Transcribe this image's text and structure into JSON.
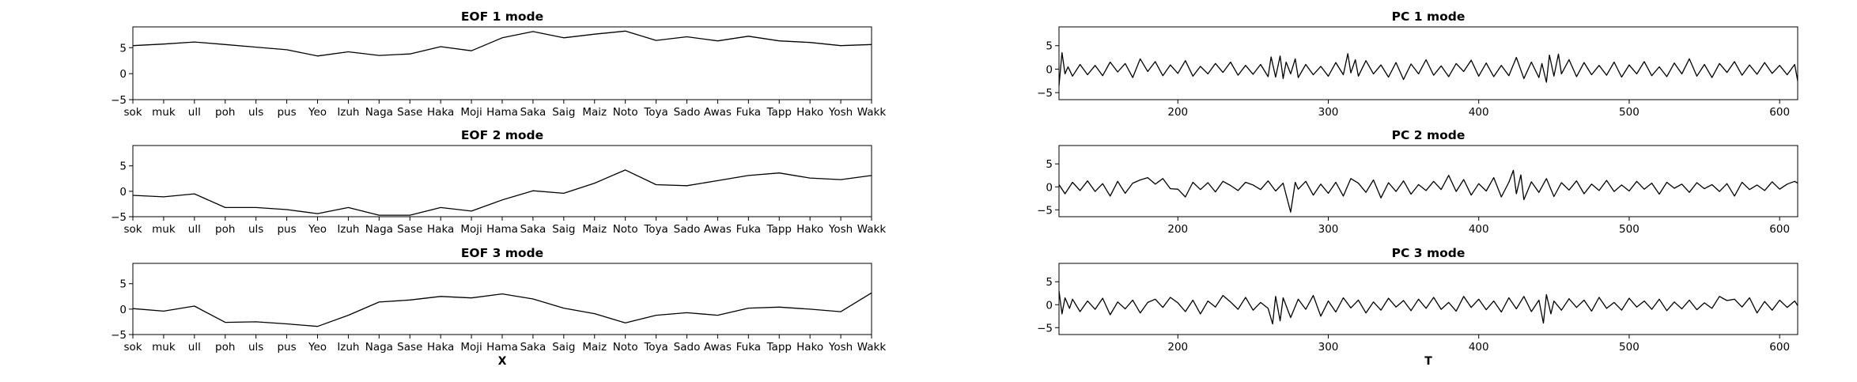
{
  "figure": {
    "colors": {
      "line": "#000000",
      "axes": "#000000",
      "background": "#ffffff"
    }
  },
  "chart_data": [
    {
      "type": "line",
      "title": "EOF 1 mode",
      "xlabel": "",
      "categories": [
        "sok",
        "muk",
        "ull",
        "poh",
        "uls",
        "pus",
        "Yeo",
        "Izuh",
        "Naga",
        "Sase",
        "Haka",
        "Moji",
        "Hama",
        "Saka",
        "Saig",
        "Maiz",
        "Noto",
        "Toya",
        "Sado",
        "Awas",
        "Fuka",
        "Tapp",
        "Hako",
        "Yosh",
        "Wakk"
      ],
      "values": [
        5.4,
        5.7,
        6.1,
        5.6,
        5.1,
        4.6,
        3.4,
        4.2,
        3.5,
        3.8,
        5.2,
        4.4,
        6.9,
        8.1,
        6.9,
        7.6,
        8.2,
        6.4,
        7.1,
        6.3,
        7.2,
        6.3,
        6.0,
        5.4,
        5.6
      ],
      "ylim": [
        -5,
        9
      ],
      "yticks": [
        "5",
        "0",
        "−5"
      ]
    },
    {
      "type": "line",
      "title": "EOF 2 mode",
      "xlabel": "",
      "categories": [
        "sok",
        "muk",
        "ull",
        "poh",
        "uls",
        "pus",
        "Yeo",
        "Izuh",
        "Naga",
        "Sase",
        "Haka",
        "Moji",
        "Hama",
        "Saka",
        "Saig",
        "Maiz",
        "Noto",
        "Toya",
        "Sado",
        "Awas",
        "Fuka",
        "Tapp",
        "Hako",
        "Yosh",
        "Wakk"
      ],
      "values": [
        -0.8,
        -1.1,
        -0.5,
        -3.2,
        -3.2,
        -3.6,
        -4.4,
        -3.2,
        -4.7,
        -4.7,
        -3.2,
        -3.9,
        -1.7,
        0.1,
        -0.4,
        1.6,
        4.2,
        1.3,
        1.1,
        2.1,
        3.1,
        3.6,
        2.6,
        2.3,
        3.1
      ],
      "ylim": [
        -5,
        9
      ],
      "yticks": [
        "5",
        "0",
        "−5"
      ]
    },
    {
      "type": "line",
      "title": "EOF 3 mode",
      "xlabel": "X",
      "categories": [
        "sok",
        "muk",
        "ull",
        "poh",
        "uls",
        "pus",
        "Yeo",
        "Izuh",
        "Naga",
        "Sase",
        "Haka",
        "Moji",
        "Hama",
        "Saka",
        "Saig",
        "Maiz",
        "Noto",
        "Toya",
        "Sado",
        "Awas",
        "Fuka",
        "Tapp",
        "Hako",
        "Yosh",
        "Wakk"
      ],
      "values": [
        0.1,
        -0.4,
        0.6,
        -2.6,
        -2.5,
        -2.9,
        -3.4,
        -1.2,
        1.4,
        1.8,
        2.5,
        2.2,
        3.0,
        2.0,
        0.2,
        -0.9,
        -2.7,
        -1.2,
        -0.7,
        -1.2,
        0.2,
        0.4,
        0.0,
        -0.5,
        3.2
      ],
      "ylim": [
        -5,
        9
      ],
      "yticks": [
        "5",
        "0",
        "−5"
      ]
    },
    {
      "type": "line",
      "title": "PC 1 mode",
      "xlabel": "",
      "x_range": [
        121,
        612
      ],
      "ylim": [
        -6.5,
        9
      ],
      "xticks": [
        200,
        300,
        400,
        500,
        600
      ],
      "yticks": [
        "5",
        "0",
        "−5"
      ],
      "x": [
        121,
        123,
        125,
        127,
        130,
        135,
        140,
        145,
        150,
        155,
        160,
        165,
        170,
        175,
        180,
        185,
        190,
        195,
        200,
        205,
        210,
        215,
        220,
        225,
        230,
        235,
        240,
        245,
        250,
        255,
        260,
        262,
        265,
        268,
        270,
        272,
        275,
        278,
        280,
        285,
        290,
        295,
        300,
        305,
        310,
        313,
        315,
        318,
        320,
        325,
        330,
        335,
        340,
        345,
        350,
        355,
        360,
        365,
        370,
        375,
        380,
        385,
        390,
        395,
        400,
        405,
        410,
        415,
        420,
        425,
        430,
        435,
        440,
        442,
        445,
        447,
        450,
        453,
        455,
        460,
        465,
        470,
        475,
        480,
        485,
        490,
        495,
        500,
        505,
        510,
        515,
        520,
        525,
        530,
        535,
        540,
        545,
        550,
        555,
        560,
        565,
        570,
        575,
        580,
        585,
        590,
        595,
        600,
        605,
        610,
        612
      ],
      "values": [
        -3.5,
        3.5,
        -1.0,
        0.5,
        -1.5,
        1.0,
        -1.2,
        0.8,
        -1.4,
        1.5,
        -0.6,
        1.2,
        -1.8,
        2.2,
        -0.5,
        1.6,
        -1.4,
        0.9,
        -0.9,
        1.8,
        -1.5,
        0.6,
        -1.0,
        1.2,
        -0.7,
        1.5,
        -1.3,
        0.8,
        -1.1,
        1.0,
        -1.6,
        2.6,
        -1.7,
        2.8,
        -2.0,
        1.5,
        -1.0,
        2.2,
        -1.8,
        1.0,
        -1.2,
        0.6,
        -1.5,
        1.4,
        -1.2,
        3.3,
        -0.8,
        2.0,
        -1.5,
        1.8,
        -1.0,
        0.9,
        -1.7,
        1.4,
        -2.2,
        1.1,
        -1.0,
        2.0,
        -1.3,
        0.7,
        -1.6,
        1.2,
        -0.5,
        1.9,
        -1.5,
        1.3,
        -1.6,
        0.8,
        -1.4,
        2.5,
        -2.0,
        1.5,
        -1.8,
        1.2,
        -2.8,
        3.0,
        -1.5,
        3.2,
        -1.0,
        2.0,
        -1.6,
        1.4,
        -1.2,
        0.8,
        -1.3,
        1.5,
        -1.7,
        0.9,
        -1.0,
        1.6,
        -1.4,
        0.5,
        -1.6,
        1.3,
        -1.0,
        2.2,
        -1.5,
        1.0,
        -1.8,
        1.2,
        -0.7,
        1.6,
        -1.3,
        0.9,
        -1.1,
        1.4,
        -0.9,
        0.8,
        -1.2,
        1.0,
        -2.5
      ]
    },
    {
      "type": "line",
      "title": "PC 2 mode",
      "xlabel": "",
      "x_range": [
        121,
        612
      ],
      "ylim": [
        -6.5,
        9
      ],
      "xticks": [
        200,
        300,
        400,
        500,
        600
      ],
      "yticks": [
        "5",
        "0",
        "−5"
      ],
      "x": [
        121,
        125,
        130,
        135,
        140,
        145,
        150,
        155,
        160,
        165,
        170,
        175,
        180,
        185,
        190,
        195,
        200,
        205,
        210,
        215,
        220,
        225,
        230,
        235,
        240,
        245,
        250,
        255,
        260,
        265,
        270,
        273,
        275,
        278,
        280,
        285,
        290,
        295,
        300,
        305,
        310,
        315,
        320,
        325,
        330,
        335,
        340,
        345,
        350,
        355,
        360,
        365,
        370,
        375,
        380,
        385,
        390,
        395,
        400,
        405,
        410,
        415,
        420,
        423,
        425,
        428,
        430,
        435,
        440,
        445,
        450,
        455,
        460,
        465,
        470,
        475,
        480,
        485,
        490,
        495,
        500,
        505,
        510,
        515,
        520,
        525,
        530,
        535,
        540,
        545,
        550,
        555,
        560,
        565,
        570,
        575,
        580,
        585,
        590,
        595,
        600,
        605,
        610,
        612
      ],
      "values": [
        0.5,
        -1.5,
        1.0,
        -0.8,
        1.3,
        -1.0,
        0.7,
        -2.0,
        1.2,
        -1.4,
        0.8,
        1.5,
        2.0,
        0.6,
        1.8,
        -0.4,
        -0.5,
        -2.2,
        1.0,
        -0.6,
        0.9,
        -1.1,
        1.2,
        0.3,
        -0.8,
        1.0,
        0.4,
        -0.6,
        1.3,
        -0.9,
        0.8,
        -3.0,
        -5.5,
        1.0,
        -0.5,
        1.2,
        -1.8,
        0.6,
        -1.4,
        1.0,
        -2.0,
        1.8,
        0.8,
        -1.2,
        1.5,
        -2.4,
        0.9,
        -1.0,
        1.3,
        -1.6,
        0.5,
        -0.8,
        1.2,
        -0.6,
        2.5,
        -1.0,
        1.6,
        -1.8,
        0.7,
        -0.9,
        2.0,
        -2.2,
        1.0,
        3.6,
        -1.5,
        2.6,
        -2.8,
        1.1,
        -1.2,
        1.8,
        -2.1,
        0.9,
        -0.7,
        1.3,
        -1.5,
        0.6,
        -0.8,
        1.4,
        -1.0,
        0.4,
        -0.9,
        1.2,
        -0.5,
        0.8,
        -1.6,
        1.0,
        -0.3,
        0.6,
        -1.2,
        0.9,
        -0.4,
        0.5,
        -1.0,
        0.7,
        -2.0,
        1.0,
        -0.6,
        0.4,
        -0.8,
        1.1,
        -0.5,
        0.6,
        1.2,
        0.8
      ]
    },
    {
      "type": "line",
      "title": "PC 3 mode",
      "xlabel": "T",
      "x_range": [
        121,
        612
      ],
      "ylim": [
        -6.5,
        9
      ],
      "xticks": [
        200,
        300,
        400,
        500,
        600
      ],
      "yticks": [
        "5",
        "0",
        "−5"
      ],
      "x": [
        121,
        123,
        125,
        128,
        130,
        135,
        140,
        145,
        150,
        155,
        160,
        165,
        170,
        175,
        180,
        185,
        190,
        195,
        200,
        205,
        210,
        215,
        220,
        225,
        230,
        235,
        240,
        245,
        250,
        255,
        260,
        263,
        265,
        268,
        270,
        275,
        280,
        285,
        290,
        295,
        300,
        305,
        310,
        315,
        320,
        325,
        330,
        335,
        340,
        345,
        350,
        355,
        360,
        365,
        370,
        375,
        380,
        385,
        390,
        395,
        400,
        405,
        410,
        415,
        420,
        425,
        430,
        435,
        440,
        443,
        445,
        448,
        450,
        455,
        460,
        465,
        470,
        475,
        480,
        485,
        490,
        495,
        500,
        505,
        510,
        515,
        520,
        525,
        530,
        535,
        540,
        545,
        550,
        555,
        560,
        565,
        570,
        575,
        580,
        585,
        590,
        595,
        600,
        605,
        610,
        612
      ],
      "values": [
        3.0,
        -2.0,
        1.5,
        -0.8,
        1.2,
        -1.5,
        0.8,
        -1.0,
        1.4,
        -2.2,
        0.6,
        -0.9,
        1.0,
        -1.8,
        0.5,
        1.2,
        -0.6,
        1.6,
        0.4,
        -1.5,
        1.0,
        -2.0,
        0.8,
        -0.5,
        2.0,
        0.6,
        -1.0,
        1.6,
        -1.2,
        0.5,
        -0.8,
        -4.2,
        1.8,
        -3.5,
        1.5,
        -2.8,
        1.2,
        -1.0,
        2.0,
        -2.5,
        0.8,
        -1.6,
        1.5,
        -0.7,
        1.0,
        -1.8,
        0.6,
        -1.2,
        1.4,
        -0.5,
        0.9,
        -1.3,
        1.2,
        -0.8,
        1.6,
        -1.0,
        0.5,
        -1.4,
        1.8,
        -0.6,
        1.2,
        -1.1,
        0.8,
        -1.6,
        1.5,
        -0.9,
        1.8,
        -1.5,
        1.0,
        -4.0,
        2.2,
        -2.0,
        0.8,
        -1.2,
        1.3,
        -0.6,
        1.0,
        -1.4,
        1.6,
        -0.8,
        0.5,
        -1.2,
        1.4,
        -0.5,
        0.8,
        -1.0,
        1.2,
        -1.3,
        0.6,
        -0.9,
        1.0,
        -1.1,
        0.4,
        -0.8,
        1.8,
        0.9,
        1.2,
        -0.5,
        1.5,
        -1.8,
        0.7,
        -1.2,
        1.0,
        -0.6,
        0.8,
        -0.2
      ]
    }
  ]
}
